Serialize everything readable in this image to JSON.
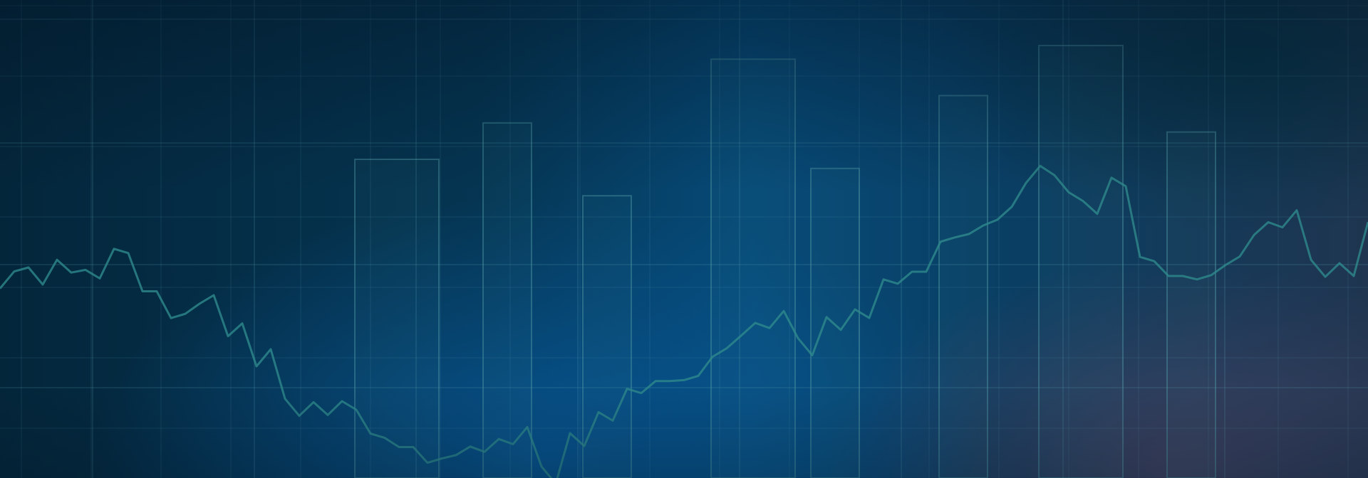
{
  "background": {
    "colors": {
      "base": "#04223a",
      "grid": "#5fa9b8",
      "bars": "#4f9aa3",
      "line": "#2e8a8c"
    },
    "bars": [
      {
        "value": 0.7
      },
      {
        "value": 0.78
      },
      {
        "value": 0.62
      },
      {
        "value": 0.92
      },
      {
        "value": 0.68
      },
      {
        "value": 0.84
      },
      {
        "value": 0.95
      },
      {
        "value": 0.76
      }
    ],
    "line_values": [
      0.52,
      0.6,
      0.64,
      0.58,
      0.66,
      0.55,
      0.44,
      0.5,
      0.42,
      0.3,
      0.22,
      0.18,
      0.2,
      0.12,
      0.05,
      0.02,
      0.06,
      0.04,
      0.08,
      0.03,
      0.1,
      0.18,
      0.22,
      0.26,
      0.28,
      0.32,
      0.4,
      0.44,
      0.38,
      0.46,
      0.5,
      0.56,
      0.6,
      0.66,
      0.7,
      0.76,
      0.84,
      0.88,
      0.82,
      0.86,
      0.64,
      0.6,
      0.56,
      0.62,
      0.68,
      0.72,
      0.64,
      0.6,
      0.74
    ]
  }
}
